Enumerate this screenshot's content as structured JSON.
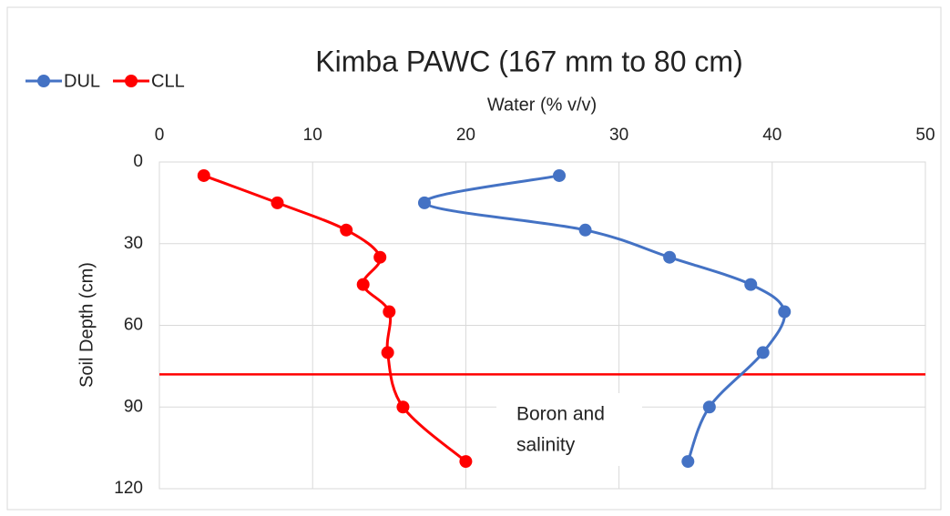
{
  "chart_data": {
    "type": "line",
    "title": "Kimba PAWC (167 mm to 80 cm)",
    "x_label": "Water (% v/v)",
    "y_label": "Soil Depth (cm)",
    "xlim": [
      0,
      50
    ],
    "xticks": [
      0,
      10,
      20,
      30,
      40,
      50
    ],
    "ylim": [
      0,
      120
    ],
    "yticks": [
      0,
      30,
      60,
      90,
      120
    ],
    "y_reversed": true,
    "x_axis_position": "top",
    "grid": true,
    "legend": "top-left",
    "series": [
      {
        "name": "DUL",
        "color": "#4472c4",
        "x": [
          26.1,
          17.3,
          27.8,
          33.3,
          38.6,
          40.8,
          39.4,
          35.9,
          34.5
        ],
        "values": [
          5,
          15,
          25,
          35,
          45,
          55,
          70,
          90,
          110
        ]
      },
      {
        "name": "CLL",
        "color": "#ff0000",
        "x": [
          2.9,
          7.7,
          12.2,
          14.4,
          13.3,
          15.0,
          14.9,
          15.9,
          20.0
        ],
        "values": [
          5,
          15,
          25,
          35,
          45,
          55,
          70,
          90,
          110
        ]
      }
    ],
    "reference_line": {
      "value": 78,
      "color": "#ff0000"
    },
    "annotation": {
      "text": [
        "Boron and",
        "salinity"
      ]
    }
  }
}
